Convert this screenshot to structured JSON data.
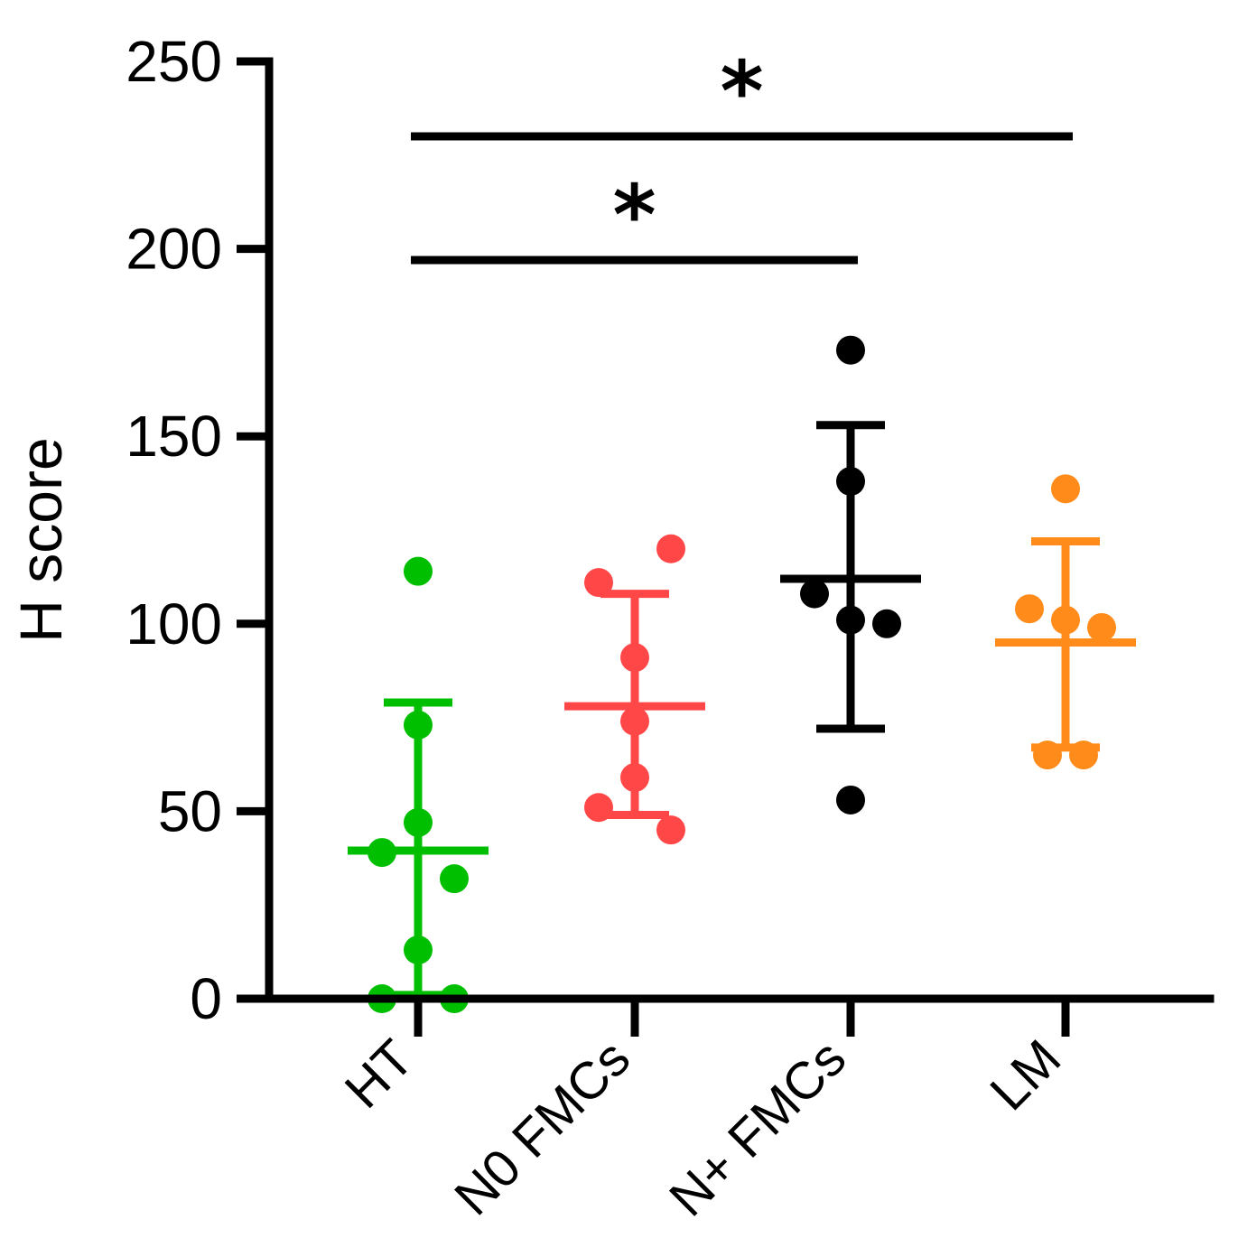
{
  "chart_data": {
    "type": "scatter",
    "title": "",
    "xlabel": "",
    "ylabel": "H score",
    "ylim": [
      0,
      250
    ],
    "yticks": [
      0,
      50,
      100,
      150,
      200,
      250
    ],
    "grid": false,
    "legend": "none",
    "categories": [
      "HT",
      "N0 FMCs",
      "N+ FMCs",
      "LM"
    ],
    "groups": [
      {
        "category": "HT",
        "color": "#00BF00",
        "points": [
          {
            "dx": 0,
            "y": 114
          },
          {
            "dx": 0,
            "y": 73
          },
          {
            "dx": 0,
            "y": 47
          },
          {
            "dx": -1,
            "y": 39
          },
          {
            "dx": 1,
            "y": 32
          },
          {
            "dx": 0,
            "y": 13
          },
          {
            "dx": -1,
            "y": 0
          },
          {
            "dx": 1,
            "y": 0
          }
        ],
        "mean": 39.5,
        "sd_upper": 79,
        "sd_lower": 1
      },
      {
        "category": "N0 FMCs",
        "color": "#FF4747",
        "points": [
          {
            "dx": 1,
            "y": 120
          },
          {
            "dx": -1,
            "y": 111
          },
          {
            "dx": 0,
            "y": 91
          },
          {
            "dx": 0,
            "y": 74
          },
          {
            "dx": 0,
            "y": 59
          },
          {
            "dx": -1,
            "y": 51
          },
          {
            "dx": 1,
            "y": 45
          }
        ],
        "mean": 78,
        "sd_upper": 108,
        "sd_lower": 49
      },
      {
        "category": "N+ FMCs",
        "color": "#000000",
        "points": [
          {
            "dx": 0,
            "y": 173
          },
          {
            "dx": 0,
            "y": 138
          },
          {
            "dx": -1,
            "y": 108
          },
          {
            "dx": 0,
            "y": 101
          },
          {
            "dx": 1,
            "y": 100
          },
          {
            "dx": 0,
            "y": 53
          }
        ],
        "mean": 112,
        "sd_upper": 153,
        "sd_lower": 72
      },
      {
        "category": "LM",
        "color": "#FF8C1A",
        "points": [
          {
            "dx": 0,
            "y": 136
          },
          {
            "dx": -1,
            "y": 104
          },
          {
            "dx": 0,
            "y": 101
          },
          {
            "dx": 1,
            "y": 99
          },
          {
            "dx": -0.5,
            "y": 65
          },
          {
            "dx": 0.5,
            "y": 65
          }
        ],
        "mean": 95,
        "sd_upper": 122,
        "sd_lower": 67
      }
    ],
    "annotations": [
      {
        "from": "HT",
        "to": "N+ FMCs",
        "y": 197,
        "label": "*"
      },
      {
        "from": "HT",
        "to": "LM",
        "y": 230,
        "label": "*"
      }
    ]
  }
}
